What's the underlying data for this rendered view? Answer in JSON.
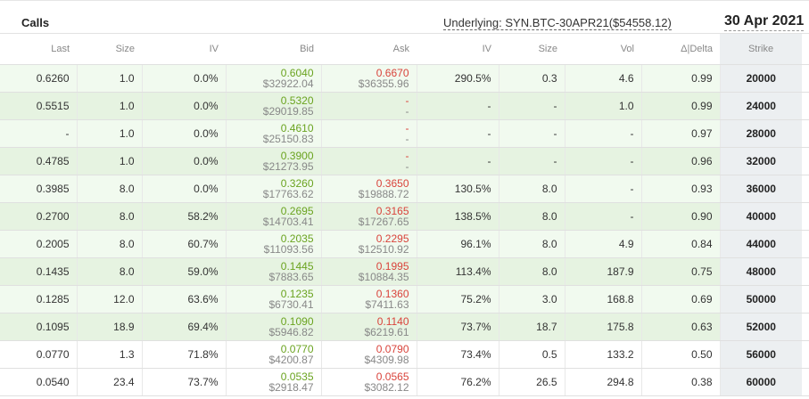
{
  "header": {
    "calls_label": "Calls",
    "underlying_label": "Underlying: SYN.BTC-30APR21($54558.12)",
    "date_label": "30 Apr 2021"
  },
  "columns": [
    "Last",
    "Size",
    "IV",
    "Bid",
    "Ask",
    "IV",
    "Size",
    "Vol",
    "Δ|Delta",
    "Strike"
  ],
  "rows": [
    {
      "last": "0.6260",
      "size": "1.0",
      "iv": "0.0%",
      "bid": "0.6040",
      "bid_usd": "$32922.04",
      "ask": "0.6670",
      "ask_usd": "$36355.96",
      "ask_iv": "290.5%",
      "ask_size": "0.3",
      "vol": "4.6",
      "delta": "0.99",
      "strike": "20000",
      "itm": true
    },
    {
      "last": "0.5515",
      "size": "1.0",
      "iv": "0.0%",
      "bid": "0.5320",
      "bid_usd": "$29019.85",
      "ask": "-",
      "ask_usd": "-",
      "ask_iv": "-",
      "ask_size": "-",
      "vol": "1.0",
      "delta": "0.99",
      "strike": "24000",
      "itm": true
    },
    {
      "last": "-",
      "size": "1.0",
      "iv": "0.0%",
      "bid": "0.4610",
      "bid_usd": "$25150.83",
      "ask": "-",
      "ask_usd": "-",
      "ask_iv": "-",
      "ask_size": "-",
      "vol": "-",
      "delta": "0.97",
      "strike": "28000",
      "itm": true
    },
    {
      "last": "0.4785",
      "size": "1.0",
      "iv": "0.0%",
      "bid": "0.3900",
      "bid_usd": "$21273.95",
      "ask": "-",
      "ask_usd": "-",
      "ask_iv": "-",
      "ask_size": "-",
      "vol": "-",
      "delta": "0.96",
      "strike": "32000",
      "itm": true
    },
    {
      "last": "0.3985",
      "size": "8.0",
      "iv": "0.0%",
      "bid": "0.3260",
      "bid_usd": "$17763.62",
      "ask": "0.3650",
      "ask_usd": "$19888.72",
      "ask_iv": "130.5%",
      "ask_size": "8.0",
      "vol": "-",
      "delta": "0.93",
      "strike": "36000",
      "itm": true
    },
    {
      "last": "0.2700",
      "size": "8.0",
      "iv": "58.2%",
      "bid": "0.2695",
      "bid_usd": "$14703.41",
      "ask": "0.3165",
      "ask_usd": "$17267.65",
      "ask_iv": "138.5%",
      "ask_size": "8.0",
      "vol": "-",
      "delta": "0.90",
      "strike": "40000",
      "itm": true
    },
    {
      "last": "0.2005",
      "size": "8.0",
      "iv": "60.7%",
      "bid": "0.2035",
      "bid_usd": "$11093.56",
      "ask": "0.2295",
      "ask_usd": "$12510.92",
      "ask_iv": "96.1%",
      "ask_size": "8.0",
      "vol": "4.9",
      "delta": "0.84",
      "strike": "44000",
      "itm": true
    },
    {
      "last": "0.1435",
      "size": "8.0",
      "iv": "59.0%",
      "bid": "0.1445",
      "bid_usd": "$7883.65",
      "ask": "0.1995",
      "ask_usd": "$10884.35",
      "ask_iv": "113.4%",
      "ask_size": "8.0",
      "vol": "187.9",
      "delta": "0.75",
      "strike": "48000",
      "itm": true
    },
    {
      "last": "0.1285",
      "size": "12.0",
      "iv": "63.6%",
      "bid": "0.1235",
      "bid_usd": "$6730.41",
      "ask": "0.1360",
      "ask_usd": "$7411.63",
      "ask_iv": "75.2%",
      "ask_size": "3.0",
      "vol": "168.8",
      "delta": "0.69",
      "strike": "50000",
      "itm": true
    },
    {
      "last": "0.1095",
      "size": "18.9",
      "iv": "69.4%",
      "bid": "0.1090",
      "bid_usd": "$5946.82",
      "ask": "0.1140",
      "ask_usd": "$6219.61",
      "ask_iv": "73.7%",
      "ask_size": "18.7",
      "vol": "175.8",
      "delta": "0.63",
      "strike": "52000",
      "itm": true
    },
    {
      "last": "0.0770",
      "size": "1.3",
      "iv": "71.8%",
      "bid": "0.0770",
      "bid_usd": "$4200.87",
      "ask": "0.0790",
      "ask_usd": "$4309.98",
      "ask_iv": "73.4%",
      "ask_size": "0.5",
      "vol": "133.2",
      "delta": "0.50",
      "strike": "56000",
      "itm": false
    },
    {
      "last": "0.0540",
      "size": "23.4",
      "iv": "73.7%",
      "bid": "0.0535",
      "bid_usd": "$2918.47",
      "ask": "0.0565",
      "ask_usd": "$3082.12",
      "ask_iv": "76.2%",
      "ask_size": "26.5",
      "vol": "294.8",
      "delta": "0.38",
      "strike": "60000",
      "itm": false
    }
  ]
}
